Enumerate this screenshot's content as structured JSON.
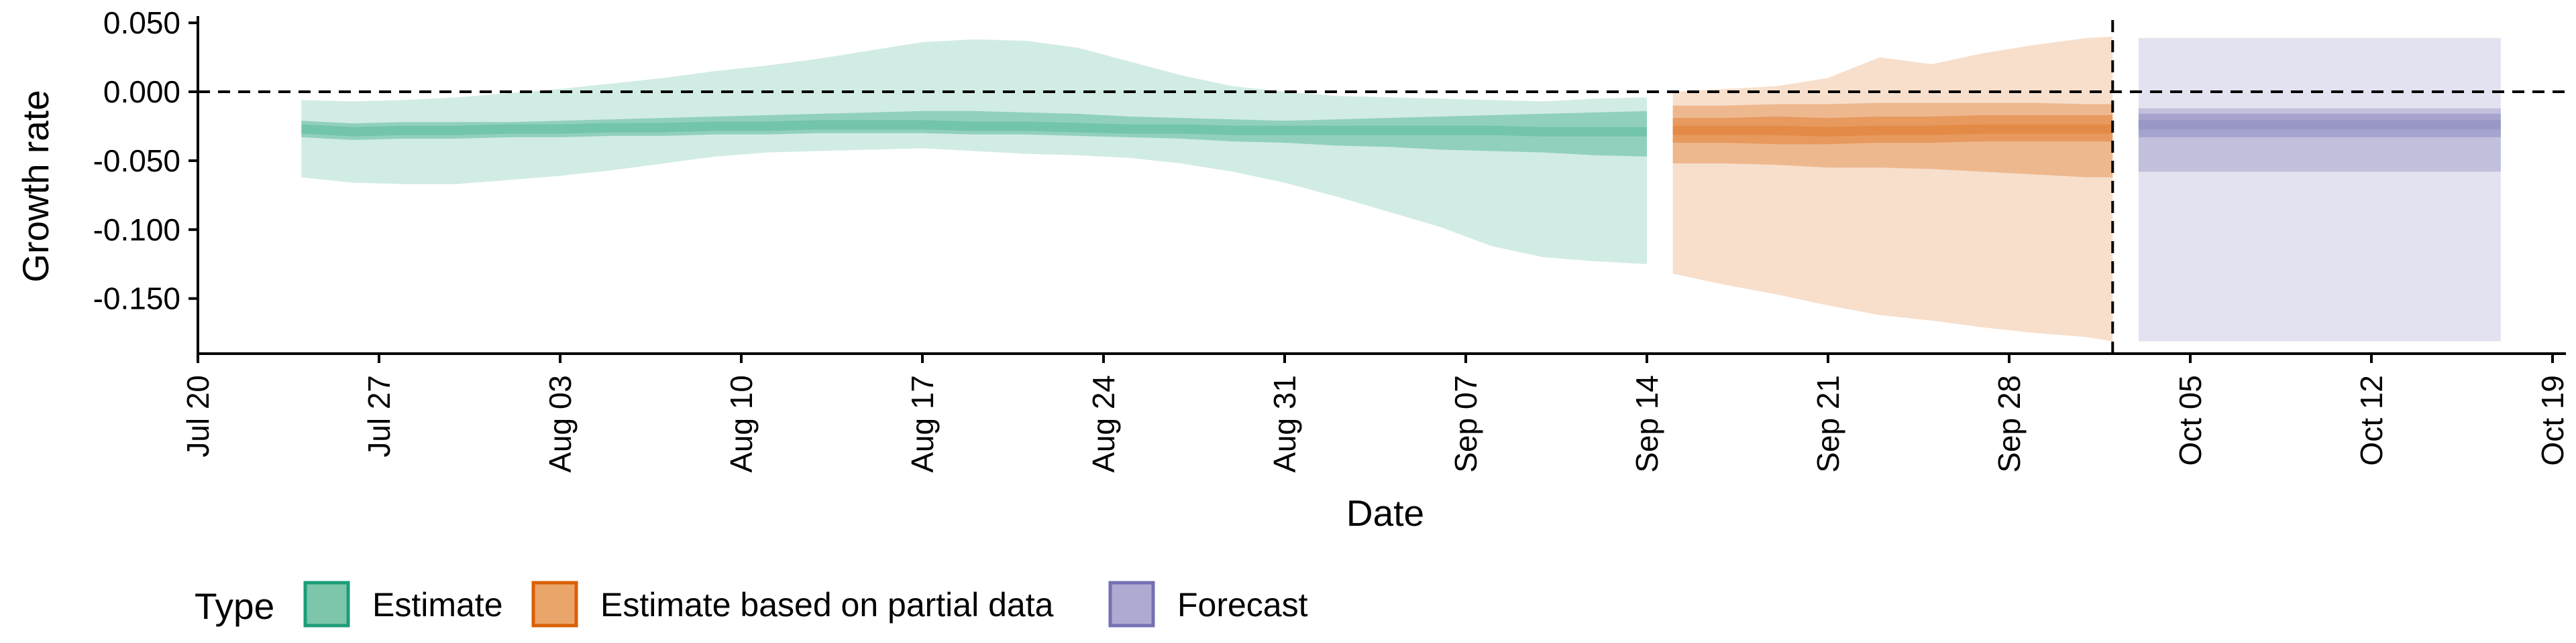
{
  "chart_data": {
    "type": "area",
    "xlabel": "Date",
    "ylabel": "Growth rate",
    "x_tick_labels": [
      "Jul 20",
      "Jul 27",
      "Aug 03",
      "Aug 10",
      "Aug 17",
      "Aug 24",
      "Aug 31",
      "Sep 07",
      "Sep 14",
      "Sep 21",
      "Sep 28",
      "Oct 05",
      "Oct 12",
      "Oct 19"
    ],
    "x_tick_dates": [
      "2020-07-20",
      "2020-07-27",
      "2020-08-03",
      "2020-08-10",
      "2020-08-17",
      "2020-08-24",
      "2020-08-31",
      "2020-09-07",
      "2020-09-14",
      "2020-09-21",
      "2020-09-28",
      "2020-10-05",
      "2020-10-12",
      "2020-10-19"
    ],
    "y_ticks": [
      0.05,
      0.0,
      -0.05,
      -0.1,
      -0.15
    ],
    "y_tick_labels": [
      "0.050",
      "0.000",
      "-0.050",
      "-0.100",
      "-0.150"
    ],
    "xlim": [
      "2020-07-20",
      "2020-10-20"
    ],
    "ylim": [
      -0.19,
      0.052
    ],
    "grid": false,
    "reference_lines": [
      {
        "axis": "y",
        "value": 0.0,
        "style": "dashed"
      },
      {
        "axis": "x",
        "value": "2020-10-02",
        "style": "dashed"
      }
    ],
    "legend": {
      "title": "Type",
      "placement": "bottom",
      "entries": [
        {
          "label": "Estimate",
          "fill": "#7dc6ab",
          "stroke": "#1b9e77"
        },
        {
          "label": "Estimate based on partial data",
          "fill": "#eaa56a",
          "stroke": "#d95f02"
        },
        {
          "label": "Forecast",
          "fill": "#afaad2",
          "stroke": "#7570b3"
        }
      ]
    },
    "series": [
      {
        "name": "Estimate",
        "color": "#1b9e77",
        "x": [
          "2020-07-24",
          "2020-07-26",
          "2020-07-28",
          "2020-07-30",
          "2020-08-01",
          "2020-08-03",
          "2020-08-05",
          "2020-08-07",
          "2020-08-09",
          "2020-08-11",
          "2020-08-13",
          "2020-08-15",
          "2020-08-17",
          "2020-08-19",
          "2020-08-21",
          "2020-08-23",
          "2020-08-25",
          "2020-08-27",
          "2020-08-29",
          "2020-08-31",
          "2020-09-02",
          "2020-09-04",
          "2020-09-06",
          "2020-09-08",
          "2020-09-10",
          "2020-09-12",
          "2020-09-14"
        ],
        "median": [
          -0.027,
          -0.029,
          -0.028,
          -0.028,
          -0.027,
          -0.027,
          -0.026,
          -0.026,
          -0.025,
          -0.025,
          -0.024,
          -0.024,
          -0.024,
          -0.025,
          -0.025,
          -0.026,
          -0.027,
          -0.027,
          -0.028,
          -0.028,
          -0.028,
          -0.028,
          -0.028,
          -0.028,
          -0.029,
          -0.029,
          -0.029
        ],
        "lower_50": [
          -0.033,
          -0.035,
          -0.034,
          -0.034,
          -0.033,
          -0.033,
          -0.032,
          -0.032,
          -0.031,
          -0.031,
          -0.03,
          -0.03,
          -0.03,
          -0.031,
          -0.031,
          -0.032,
          -0.033,
          -0.034,
          -0.036,
          -0.037,
          -0.039,
          -0.04,
          -0.042,
          -0.043,
          -0.044,
          -0.046,
          -0.047
        ],
        "upper_50": [
          -0.021,
          -0.023,
          -0.022,
          -0.022,
          -0.022,
          -0.021,
          -0.02,
          -0.019,
          -0.018,
          -0.017,
          -0.016,
          -0.015,
          -0.014,
          -0.014,
          -0.015,
          -0.016,
          -0.018,
          -0.019,
          -0.02,
          -0.021,
          -0.02,
          -0.019,
          -0.018,
          -0.017,
          -0.016,
          -0.015,
          -0.014
        ],
        "lower_90": [
          -0.062,
          -0.066,
          -0.067,
          -0.067,
          -0.064,
          -0.061,
          -0.057,
          -0.052,
          -0.047,
          -0.044,
          -0.043,
          -0.042,
          -0.041,
          -0.043,
          -0.045,
          -0.046,
          -0.048,
          -0.052,
          -0.058,
          -0.066,
          -0.076,
          -0.087,
          -0.098,
          -0.112,
          -0.12,
          -0.123,
          -0.125
        ],
        "upper_90": [
          -0.006,
          -0.007,
          -0.006,
          -0.004,
          -0.001,
          0.002,
          0.006,
          0.01,
          0.015,
          0.019,
          0.024,
          0.03,
          0.036,
          0.038,
          0.037,
          0.032,
          0.022,
          0.012,
          0.004,
          0.0,
          -0.003,
          -0.004,
          -0.005,
          -0.006,
          -0.007,
          -0.005,
          -0.004
        ]
      },
      {
        "name": "Estimate based on partial data",
        "color": "#d95f02",
        "x": [
          "2020-09-15",
          "2020-09-17",
          "2020-09-19",
          "2020-09-21",
          "2020-09-23",
          "2020-09-25",
          "2020-09-27",
          "2020-09-29",
          "2020-10-01",
          "2020-10-02"
        ],
        "median": [
          -0.028,
          -0.028,
          -0.028,
          -0.029,
          -0.028,
          -0.028,
          -0.027,
          -0.027,
          -0.027,
          -0.027
        ],
        "lower_50": [
          -0.037,
          -0.037,
          -0.038,
          -0.038,
          -0.037,
          -0.037,
          -0.036,
          -0.036,
          -0.036,
          -0.036
        ],
        "upper_50": [
          -0.019,
          -0.019,
          -0.018,
          -0.019,
          -0.018,
          -0.018,
          -0.017,
          -0.017,
          -0.017,
          -0.017
        ],
        "lower_25": [
          -0.052,
          -0.052,
          -0.053,
          -0.055,
          -0.055,
          -0.056,
          -0.058,
          -0.06,
          -0.062,
          -0.062
        ],
        "upper_25": [
          -0.01,
          -0.01,
          -0.009,
          -0.009,
          -0.008,
          -0.008,
          -0.008,
          -0.008,
          -0.009,
          -0.009
        ],
        "lower_90": [
          -0.132,
          -0.14,
          -0.147,
          -0.155,
          -0.162,
          -0.166,
          -0.171,
          -0.175,
          -0.178,
          -0.181
        ],
        "upper_90": [
          0.0,
          0.002,
          0.004,
          0.01,
          0.025,
          0.02,
          0.028,
          0.034,
          0.039,
          0.04
        ]
      },
      {
        "name": "Forecast",
        "color": "#7570b3",
        "x": [
          "2020-10-03",
          "2020-10-17"
        ],
        "median": [
          -0.024,
          -0.024
        ],
        "lower_50": [
          -0.033,
          -0.033
        ],
        "upper_50": [
          -0.016,
          -0.016
        ],
        "lower_25": [
          -0.058,
          -0.058
        ],
        "upper_25": [
          -0.012,
          -0.012
        ],
        "lower_90": [
          -0.181,
          -0.181
        ],
        "upper_90": [
          0.039,
          0.039
        ]
      }
    ]
  }
}
